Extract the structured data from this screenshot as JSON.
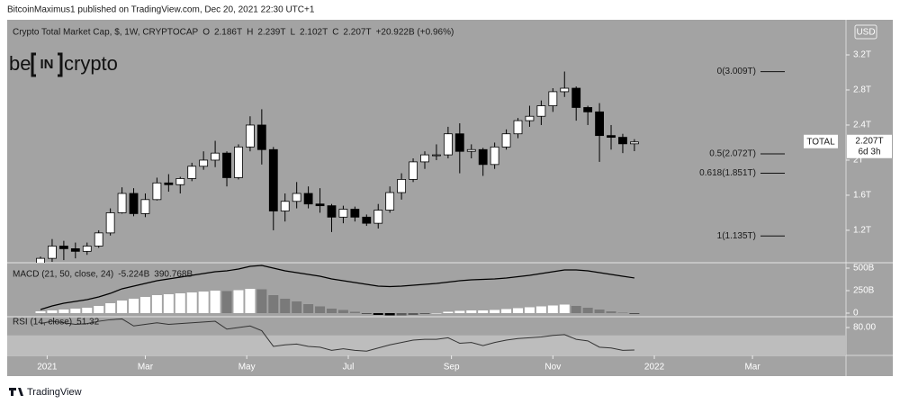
{
  "header": {
    "publisher": "BitcoinMaximus1 published on TradingView.com, Dec 20, 2021 22:30 UTC+1",
    "footer": "TradingView"
  },
  "logo": {
    "left": "be",
    "middle": "IN",
    "right": "crypto"
  },
  "currency_button": "USD",
  "chart_data": [
    {
      "type": "candlestick",
      "title": "Crypto Total Market Cap, $, 1W, CRYPTOCAP",
      "ohlc_legend": [
        {
          "key": "O",
          "label": "2.186T"
        },
        {
          "key": "H",
          "label": "2.239T"
        },
        {
          "key": "L",
          "label": "2.102T"
        },
        {
          "key": "C",
          "label": "2.207T"
        }
      ],
      "change": "+20.922B (+0.96%)",
      "x": [
        0,
        1,
        2,
        3,
        4,
        5,
        6,
        7,
        8,
        9,
        10,
        11,
        12,
        13,
        14,
        15,
        16,
        17,
        18,
        19,
        20,
        21,
        22,
        23,
        24,
        25,
        26,
        27,
        28,
        29,
        30,
        31,
        32,
        33,
        34,
        35,
        36,
        37,
        38,
        39,
        40,
        41,
        42,
        43,
        44,
        45,
        46,
        47,
        48,
        49,
        50,
        51
      ],
      "open": [
        0.78,
        0.88,
        1.02,
        0.99,
        0.96,
        1.02,
        1.17,
        1.4,
        1.62,
        1.39,
        1.55,
        1.74,
        1.72,
        1.79,
        1.93,
        2.0,
        2.08,
        1.8,
        2.15,
        2.4,
        2.12,
        1.42,
        1.53,
        1.62,
        1.5,
        1.48,
        1.35,
        1.44,
        1.35,
        1.28,
        1.43,
        1.63,
        1.78,
        1.98,
        2.06,
        2.06,
        2.3,
        2.1,
        2.12,
        1.95,
        2.15,
        2.3,
        2.45,
        2.5,
        2.62,
        2.78,
        2.82,
        2.6,
        2.55,
        2.28,
        2.26,
        2.186
      ],
      "high": [
        0.9,
        1.1,
        1.08,
        1.06,
        1.06,
        1.2,
        1.45,
        1.69,
        1.68,
        1.62,
        1.8,
        1.84,
        1.81,
        1.97,
        2.1,
        2.22,
        2.1,
        2.18,
        2.5,
        2.58,
        2.15,
        1.62,
        1.75,
        1.7,
        1.68,
        1.5,
        1.48,
        1.47,
        1.38,
        1.5,
        1.7,
        1.85,
        2.02,
        2.1,
        2.18,
        2.38,
        2.42,
        2.18,
        2.14,
        2.2,
        2.35,
        2.48,
        2.62,
        2.68,
        2.82,
        3.01,
        2.84,
        2.62,
        2.65,
        2.4,
        2.3,
        2.239
      ],
      "low": [
        0.76,
        0.84,
        0.86,
        0.88,
        0.92,
        1.0,
        1.14,
        1.39,
        1.36,
        1.35,
        1.54,
        1.64,
        1.62,
        1.76,
        1.89,
        1.92,
        1.7,
        1.78,
        2.1,
        1.95,
        1.2,
        1.3,
        1.45,
        1.45,
        1.4,
        1.18,
        1.28,
        1.3,
        1.25,
        1.22,
        1.4,
        1.55,
        1.75,
        1.9,
        2.0,
        2.02,
        1.85,
        2.02,
        1.82,
        1.9,
        2.12,
        2.25,
        2.38,
        2.4,
        2.55,
        2.72,
        2.45,
        2.4,
        1.98,
        2.12,
        2.08,
        2.102
      ],
      "close": [
        0.88,
        1.02,
        0.99,
        0.96,
        1.02,
        1.17,
        1.4,
        1.62,
        1.39,
        1.55,
        1.74,
        1.72,
        1.79,
        1.93,
        2.0,
        2.08,
        1.8,
        2.15,
        2.4,
        2.12,
        1.42,
        1.53,
        1.62,
        1.5,
        1.48,
        1.35,
        1.44,
        1.35,
        1.28,
        1.43,
        1.63,
        1.78,
        1.98,
        2.06,
        2.06,
        2.3,
        2.1,
        2.12,
        1.95,
        2.15,
        2.3,
        2.45,
        2.5,
        2.62,
        2.78,
        2.82,
        2.6,
        2.55,
        2.28,
        2.26,
        2.186,
        2.207
      ],
      "up_color": "#ffffff",
      "down_color": "#000000",
      "wick_color": "#000000",
      "xlim": [
        -2.86,
        69.17
      ],
      "xticks": [
        {
          "value": 0.57,
          "label": "2021"
        },
        {
          "value": 9.0,
          "label": "Mar"
        },
        {
          "value": 17.71,
          "label": "May"
        },
        {
          "value": 26.43,
          "label": "Jul"
        },
        {
          "value": 35.29,
          "label": "Sep"
        },
        {
          "value": 44.0,
          "label": "Nov"
        },
        {
          "value": 52.71,
          "label": "2022"
        },
        {
          "value": 61.14,
          "label": "Mar"
        }
      ],
      "ylim": [
        0.83,
        3.6
      ],
      "yticks": [
        {
          "value": 3.2,
          "label": "3.2T"
        },
        {
          "value": 2.8,
          "label": "2.8T"
        },
        {
          "value": 2.4,
          "label": "2.4T"
        },
        {
          "value": 2,
          "label": "2T"
        },
        {
          "value": 1.6,
          "label": "1.6T"
        },
        {
          "value": 1.2,
          "label": "1.2T"
        }
      ],
      "annotations": [
        {
          "value": 3.009,
          "label": "0(3.009T)"
        },
        {
          "value": 2.072,
          "label": "0.5(2.072T)"
        },
        {
          "value": 1.851,
          "label": "0.618(1.851T)"
        },
        {
          "value": 1.135,
          "label": "1(1.135T)"
        }
      ],
      "last_price_label": "2.207T",
      "countdown": "6d 3h",
      "symbol_tag": "TOTAL"
    },
    {
      "type": "macd",
      "title": "MACD (21, 50, close, 24)",
      "x": [
        0,
        1,
        2,
        3,
        4,
        5,
        6,
        7,
        8,
        9,
        10,
        11,
        12,
        13,
        14,
        15,
        16,
        17,
        18,
        19,
        20,
        21,
        22,
        23,
        24,
        25,
        26,
        27,
        28,
        29,
        30,
        31,
        32,
        33,
        34,
        35,
        36,
        37,
        38,
        39,
        40,
        41,
        42,
        43,
        44,
        45,
        46,
        47,
        48,
        49,
        50,
        51
      ],
      "histogram": [
        20,
        30,
        40,
        50,
        60,
        80,
        110,
        140,
        160,
        180,
        200,
        210,
        220,
        230,
        240,
        250,
        245,
        255,
        270,
        265,
        200,
        160,
        130,
        100,
        75,
        50,
        35,
        15,
        -5,
        -20,
        -25,
        -25,
        -20,
        -10,
        0,
        15,
        25,
        30,
        30,
        35,
        45,
        55,
        65,
        75,
        85,
        95,
        80,
        60,
        40,
        20,
        5,
        -5.224
      ],
      "histogram_label": "-5.224B",
      "macd": [
        40,
        80,
        110,
        130,
        150,
        180,
        220,
        270,
        300,
        330,
        360,
        380,
        400,
        420,
        440,
        460,
        470,
        490,
        520,
        530,
        500,
        470,
        450,
        430,
        410,
        380,
        360,
        340,
        320,
        300,
        295,
        300,
        310,
        320,
        330,
        345,
        360,
        370,
        375,
        380,
        390,
        405,
        420,
        440,
        460,
        480,
        480,
        470,
        450,
        430,
        410,
        390.768
      ],
      "macd_label": "390.768B",
      "line_color": "#000000",
      "histogram_colors": {
        "rising_positive": "#ffffff",
        "falling_positive": "#7a7a7a",
        "falling_negative": "#000000",
        "rising_negative": "#5a5a5a"
      },
      "xlim": [
        -2.86,
        69.17
      ],
      "ylim": [
        -40,
        560
      ],
      "yticks": [
        {
          "value": 500,
          "label": "500B"
        },
        {
          "value": 250,
          "label": "250B"
        },
        0
      ]
    },
    {
      "type": "rsi",
      "title": "RSI (14, close)",
      "x": [
        0,
        1,
        2,
        3,
        4,
        5,
        6,
        7,
        8,
        9,
        10,
        11,
        12,
        13,
        14,
        15,
        16,
        17,
        18,
        19,
        20,
        21,
        22,
        23,
        24,
        25,
        26,
        27,
        28,
        29,
        30,
        31,
        32,
        33,
        34,
        35,
        36,
        37,
        38,
        39,
        40,
        41,
        42,
        43,
        44,
        45,
        46,
        47,
        48,
        49,
        50,
        51
      ],
      "values": [
        85,
        88,
        86,
        84,
        85,
        88,
        90,
        91,
        82,
        84,
        86,
        84,
        85,
        86,
        87,
        88,
        78,
        80,
        82,
        76,
        56,
        58,
        59,
        56,
        55,
        51,
        53,
        51,
        50,
        54,
        58,
        61,
        64,
        65,
        65,
        67,
        60,
        61,
        57,
        61,
        64,
        66,
        67,
        68,
        70,
        71,
        65,
        63,
        55,
        54,
        51,
        51.32
      ],
      "value_label": "51.32",
      "color": "#333333",
      "band": [
        30,
        70
      ],
      "band_color": "#bdbdbd",
      "xlim": [
        -2.86,
        69.17
      ],
      "ylim": [
        44.5,
        93.8
      ],
      "yticks": [
        {
          "value": 80,
          "label": "80.00"
        }
      ]
    }
  ]
}
